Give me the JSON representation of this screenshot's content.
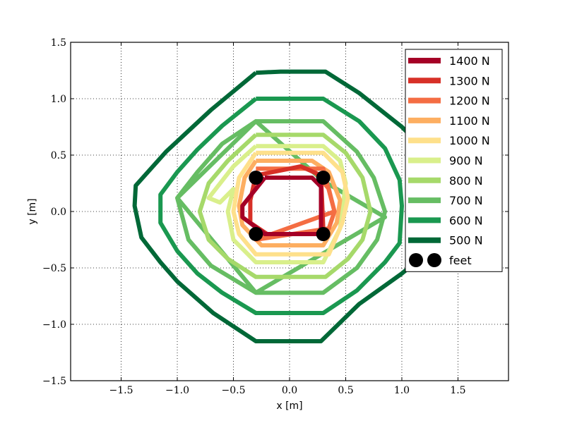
{
  "chart_data": {
    "type": "line",
    "xlabel": "x [m]",
    "ylabel": "y [m]",
    "xlim": [
      -1.95,
      1.95
    ],
    "ylim": [
      -1.5,
      1.5
    ],
    "xticks": [
      -1.5,
      -1.0,
      -0.5,
      0.0,
      0.5,
      1.0,
      1.5
    ],
    "xtick_labels": [
      "−1.5",
      "−1.0",
      "−0.5",
      "0.0",
      "0.5",
      "1.0",
      "1.5"
    ],
    "yticks": [
      -1.5,
      -1.0,
      -0.5,
      0.0,
      0.5,
      1.0,
      1.5
    ],
    "ytick_labels": [
      "−1.5",
      "−1.0",
      "−0.5",
      "0.0",
      "0.5",
      "1.0",
      "1.5"
    ],
    "grid": true,
    "legend_position": "top-right",
    "series": [
      {
        "name": "500 N",
        "color": "#006837",
        "points": [
          [
            -0.3,
            1.23
          ],
          [
            -0.08,
            1.24
          ],
          [
            0.32,
            1.24
          ],
          [
            0.62,
            1.05
          ],
          [
            1.0,
            0.75
          ],
          [
            1.2,
            0.55
          ],
          [
            1.35,
            0.15
          ],
          [
            1.3,
            -0.3
          ],
          [
            1.0,
            -0.55
          ],
          [
            0.62,
            -0.82
          ],
          [
            0.28,
            -1.15
          ],
          [
            -0.3,
            -1.15
          ],
          [
            -0.68,
            -0.9
          ],
          [
            -1.0,
            -0.62
          ],
          [
            -1.15,
            -0.45
          ],
          [
            -1.32,
            -0.23
          ],
          [
            -1.38,
            0.05
          ],
          [
            -1.37,
            0.23
          ],
          [
            -1.1,
            0.53
          ],
          [
            -0.7,
            0.9
          ],
          [
            -0.3,
            1.23
          ]
        ]
      },
      {
        "name": "600 N",
        "color": "#1a9850",
        "points": [
          [
            -0.3,
            1.0
          ],
          [
            0.3,
            1.0
          ],
          [
            0.62,
            0.8
          ],
          [
            0.85,
            0.56
          ],
          [
            0.98,
            0.28
          ],
          [
            1.0,
            0.05
          ],
          [
            0.98,
            -0.28
          ],
          [
            0.85,
            -0.45
          ],
          [
            0.6,
            -0.7
          ],
          [
            0.3,
            -0.9
          ],
          [
            -0.3,
            -0.9
          ],
          [
            -0.6,
            -0.72
          ],
          [
            -0.82,
            -0.55
          ],
          [
            -1.0,
            -0.35
          ],
          [
            -1.15,
            -0.1
          ],
          [
            -1.15,
            0.15
          ],
          [
            -1.0,
            0.35
          ],
          [
            -0.82,
            0.55
          ],
          [
            -0.6,
            0.76
          ],
          [
            -0.3,
            1.0
          ]
        ]
      },
      {
        "name": "700 N",
        "color": "#66bd63",
        "points": [
          [
            -0.3,
            0.8
          ],
          [
            0.3,
            0.8
          ],
          [
            0.6,
            0.53
          ],
          [
            0.75,
            0.3
          ],
          [
            0.85,
            0.0
          ],
          [
            0.78,
            -0.25
          ],
          [
            0.6,
            -0.5
          ],
          [
            0.3,
            -0.72
          ],
          [
            -0.3,
            -0.72
          ],
          [
            -0.7,
            -0.48
          ],
          [
            -0.9,
            -0.25
          ],
          [
            -1.0,
            0.12
          ],
          [
            -0.82,
            0.35
          ],
          [
            -0.6,
            0.6
          ],
          [
            -0.3,
            0.8
          ],
          [
            0.3,
            0.27
          ],
          [
            0.85,
            -0.05
          ],
          [
            -0.3,
            -0.72
          ],
          [
            -1.0,
            0.12
          ],
          [
            -0.3,
            0.8
          ]
        ]
      },
      {
        "name": "800 N",
        "color": "#a6d96a",
        "points": [
          [
            -0.3,
            0.68
          ],
          [
            0.3,
            0.68
          ],
          [
            0.5,
            0.52
          ],
          [
            0.65,
            0.3
          ],
          [
            0.72,
            0.0
          ],
          [
            0.65,
            -0.25
          ],
          [
            0.52,
            -0.42
          ],
          [
            0.32,
            -0.58
          ],
          [
            -0.3,
            -0.58
          ],
          [
            -0.55,
            -0.42
          ],
          [
            -0.72,
            -0.25
          ],
          [
            -0.8,
            0.0
          ],
          [
            -0.72,
            0.25
          ],
          [
            -0.55,
            0.45
          ],
          [
            -0.3,
            0.68
          ]
        ]
      },
      {
        "name": "900 N",
        "color": "#d9ef8b",
        "points": [
          [
            -0.3,
            0.58
          ],
          [
            0.3,
            0.58
          ],
          [
            0.45,
            0.45
          ],
          [
            0.5,
            0.25
          ],
          [
            0.45,
            -0.15
          ],
          [
            0.3,
            -0.45
          ],
          [
            -0.3,
            -0.45
          ],
          [
            -0.5,
            -0.25
          ],
          [
            -0.55,
            0.0
          ],
          [
            -0.5,
            0.2
          ],
          [
            -0.62,
            0.08
          ],
          [
            -0.72,
            0.12
          ],
          [
            -0.5,
            0.4
          ],
          [
            -0.3,
            0.58
          ]
        ]
      },
      {
        "name": "1000 N",
        "color": "#fee08b",
        "points": [
          [
            -0.3,
            0.52
          ],
          [
            0.3,
            0.52
          ],
          [
            0.47,
            0.35
          ],
          [
            0.52,
            0.12
          ],
          [
            0.47,
            -0.1
          ],
          [
            0.35,
            -0.38
          ],
          [
            -0.1,
            -0.38
          ],
          [
            -0.3,
            -0.38
          ],
          [
            -0.45,
            -0.2
          ],
          [
            -0.5,
            0.0
          ],
          [
            -0.45,
            0.3
          ],
          [
            -0.3,
            0.52
          ]
        ]
      },
      {
        "name": "1100 N",
        "color": "#fdae61",
        "points": [
          [
            -0.3,
            0.45
          ],
          [
            0.2,
            0.45
          ],
          [
            0.35,
            0.35
          ],
          [
            0.45,
            0.1
          ],
          [
            0.42,
            -0.1
          ],
          [
            0.3,
            -0.3
          ],
          [
            -0.25,
            -0.3
          ],
          [
            -0.42,
            -0.12
          ],
          [
            -0.45,
            0.05
          ],
          [
            -0.4,
            0.3
          ],
          [
            -0.3,
            0.45
          ]
        ]
      },
      {
        "name": "1200 N",
        "color": "#f46d43",
        "points": [
          [
            -0.3,
            0.38
          ],
          [
            0.2,
            0.38
          ],
          [
            0.35,
            0.2
          ],
          [
            0.4,
            0.0
          ],
          [
            0.35,
            -0.15
          ],
          [
            -0.3,
            -0.25
          ],
          [
            0.4,
            0.0
          ],
          [
            0.3,
            0.38
          ],
          [
            -0.3,
            0.38
          ]
        ]
      },
      {
        "name": "1300 N",
        "color": "#d73027",
        "points": [
          [
            -0.3,
            0.32
          ],
          [
            0.1,
            0.4
          ],
          [
            0.28,
            0.32
          ],
          [
            0.3,
            -0.15
          ],
          [
            0.25,
            -0.2
          ],
          [
            -0.2,
            -0.2
          ],
          [
            -0.35,
            -0.1
          ],
          [
            -0.35,
            0.1
          ],
          [
            -0.3,
            0.32
          ]
        ]
      },
      {
        "name": "1400 N",
        "color": "#a50026",
        "points": [
          [
            -0.22,
            0.3
          ],
          [
            0.2,
            0.3
          ],
          [
            0.28,
            0.22
          ],
          [
            0.28,
            -0.2
          ],
          [
            -0.22,
            -0.2
          ],
          [
            -0.42,
            -0.05
          ],
          [
            -0.42,
            0.05
          ],
          [
            -0.22,
            0.3
          ]
        ]
      }
    ],
    "legend_order": [
      "1400 N",
      "1300 N",
      "1200 N",
      "1100 N",
      "1000 N",
      "900 N",
      "800 N",
      "700 N",
      "600 N",
      "500 N"
    ],
    "feet": {
      "name": "feet",
      "color": "#000000",
      "points": [
        [
          -0.3,
          0.3
        ],
        [
          0.3,
          0.3
        ],
        [
          -0.3,
          -0.2
        ],
        [
          0.3,
          -0.2
        ]
      ]
    }
  }
}
